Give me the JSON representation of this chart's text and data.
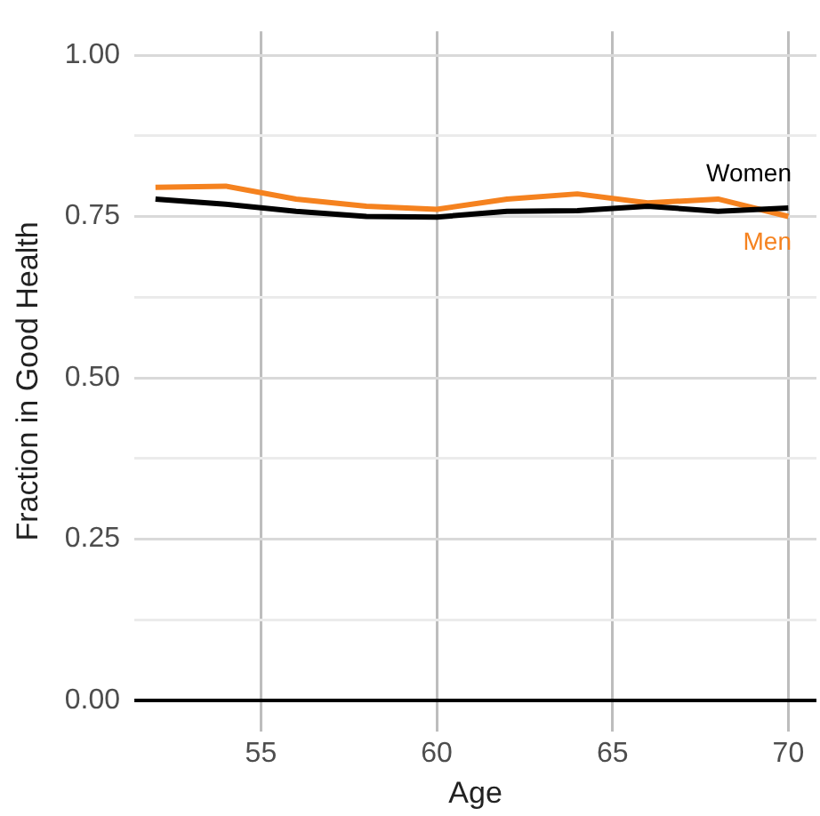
{
  "chart_data": {
    "type": "line",
    "xlabel": "Age",
    "ylabel": "Fraction in Good Health",
    "x": [
      52,
      54,
      56,
      58,
      60,
      62,
      64,
      66,
      68,
      70
    ],
    "series": [
      {
        "name": "Women",
        "color": "#000000",
        "values": [
          0.777,
          0.769,
          0.758,
          0.75,
          0.749,
          0.758,
          0.759,
          0.766,
          0.758,
          0.763
        ]
      },
      {
        "name": "Men",
        "color": "#f5821f",
        "values": [
          0.795,
          0.797,
          0.777,
          0.766,
          0.761,
          0.777,
          0.785,
          0.771,
          0.777,
          0.75
        ]
      }
    ],
    "xlim": [
      51.4,
      70.8
    ],
    "xticks": [
      55,
      60,
      65,
      70
    ],
    "ylim": [
      -0.048,
      1.037
    ],
    "yticks": [
      {
        "value": 0,
        "label": "0.00"
      },
      {
        "value": 0.125,
        "label": null
      },
      0.25,
      {
        "value": 0.375,
        "label": null
      },
      {
        "value": 0.5,
        "label": "0.50"
      },
      {
        "value": 0.625,
        "label": null
      },
      0.75,
      {
        "value": 0.875,
        "label": null
      },
      {
        "value": 1,
        "label": "1.00"
      }
    ],
    "grid": true,
    "legend": false,
    "marker": "none",
    "line_style": "solid"
  }
}
